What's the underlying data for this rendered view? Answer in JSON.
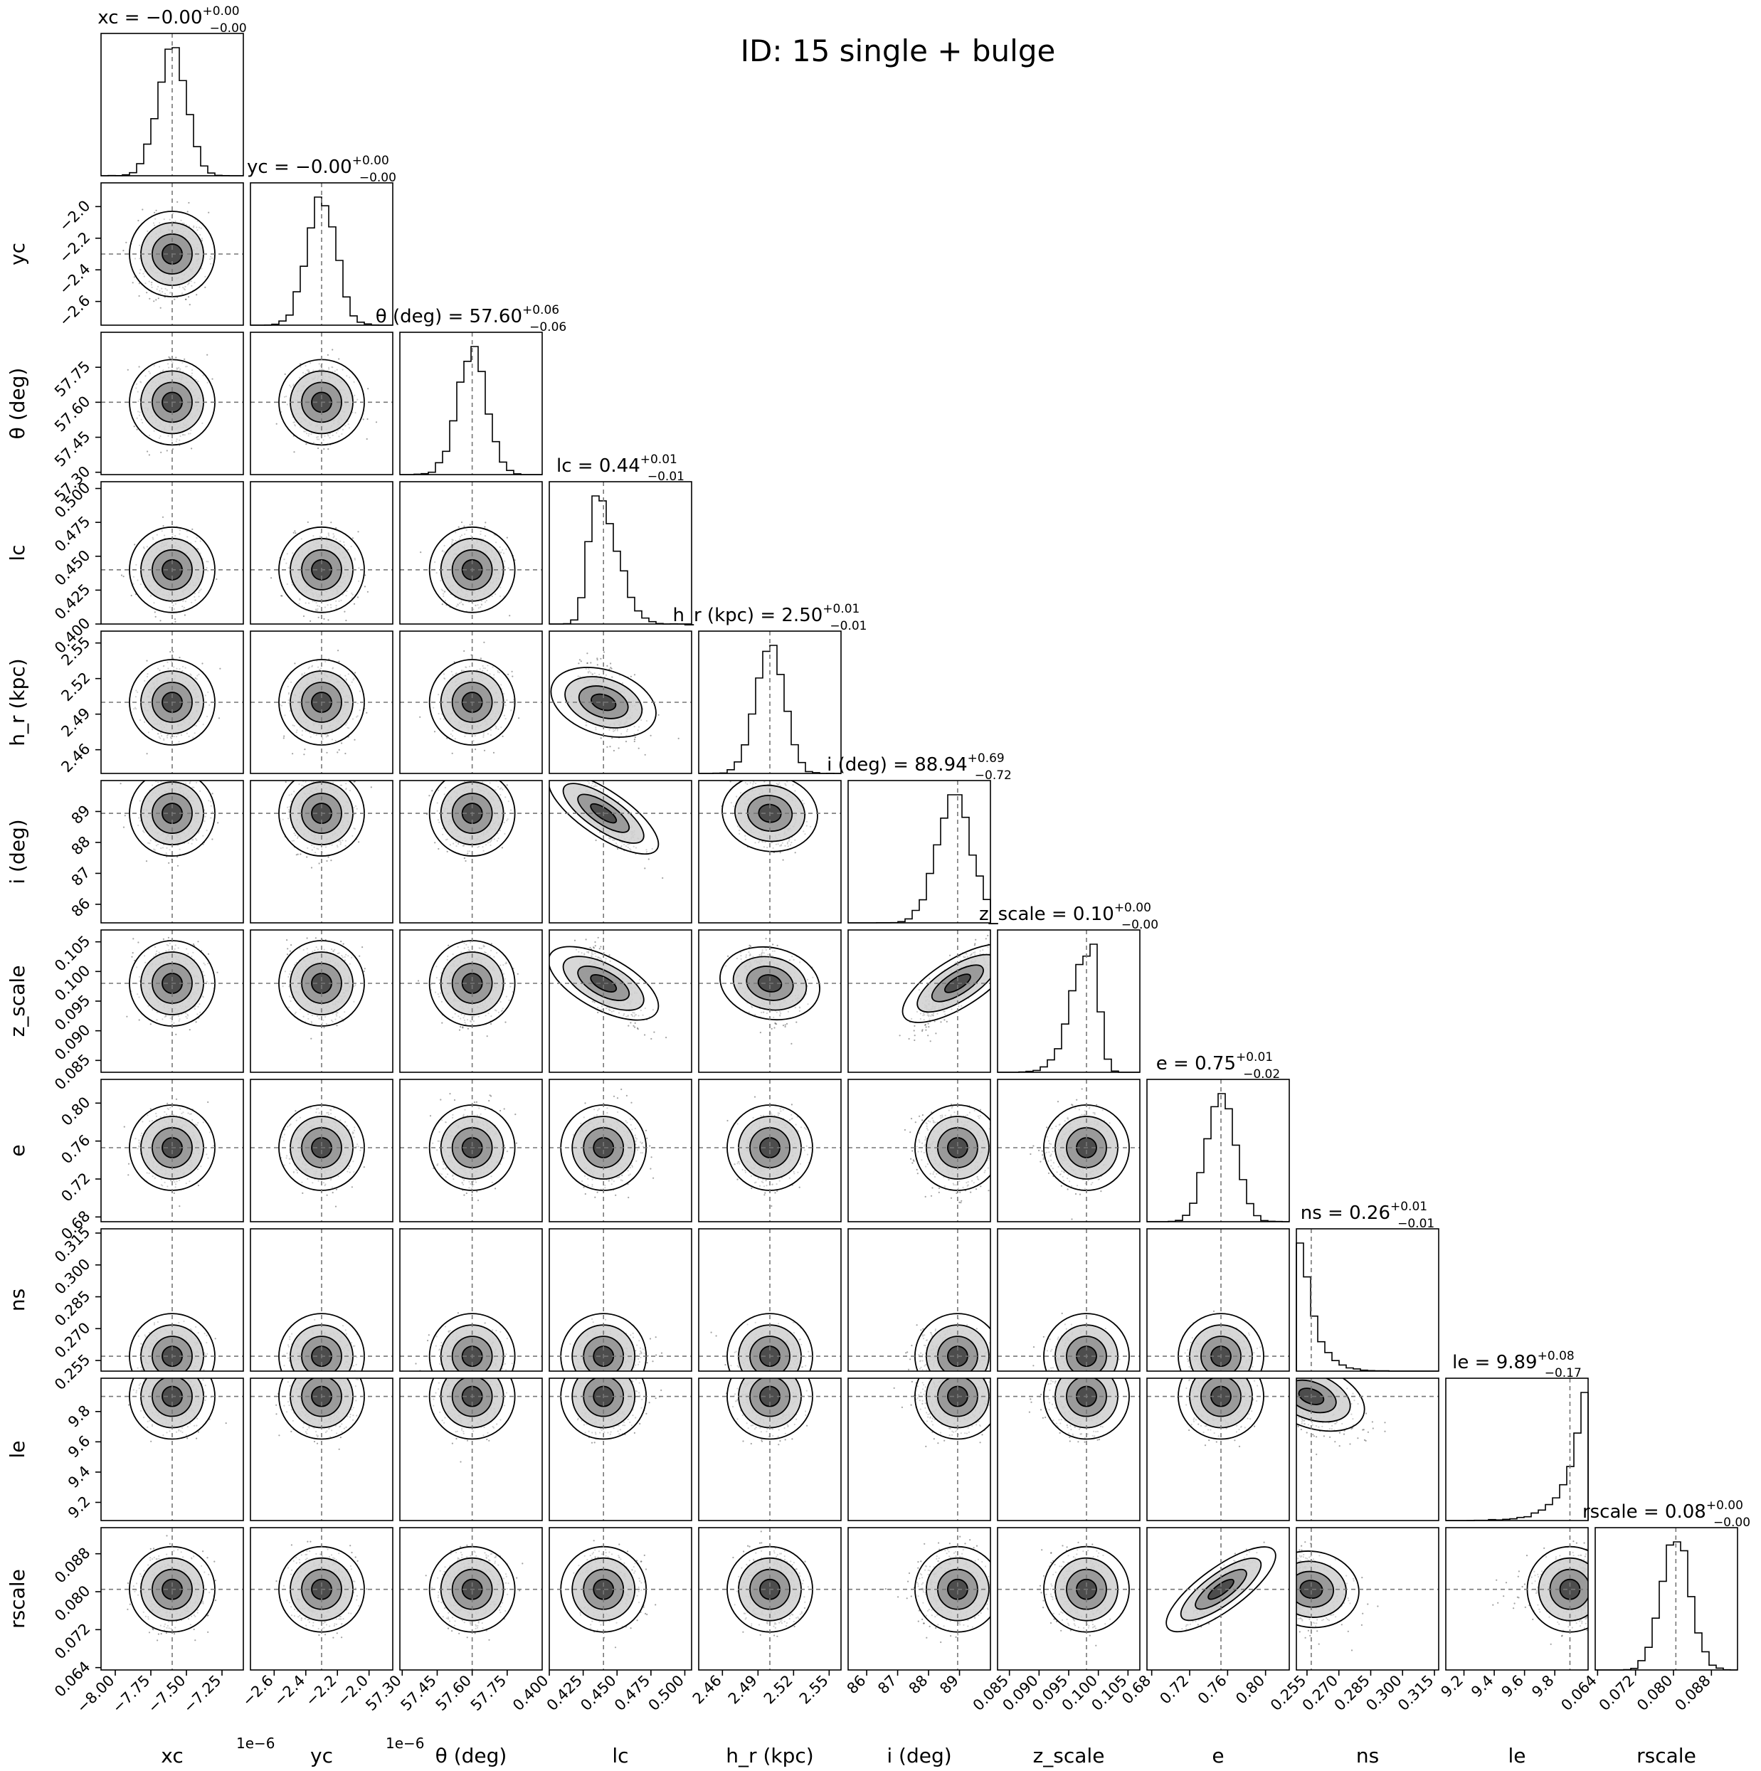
{
  "figure": {
    "title": "ID: 15  single + bulge"
  },
  "chart_data": {
    "type": "corner",
    "title": "ID: 15  single + bulge",
    "parameters": [
      {
        "key": "xc",
        "label": "xc",
        "median": -7.6e-06,
        "range": [
          -8.1e-06,
          -7.1e-06
        ],
        "scale": 1e-06,
        "offset_text": "1e−6",
        "ticks": [
          -8.0,
          -7.75,
          -7.5,
          -7.25
        ],
        "tick_labels": [
          "−8.00",
          "−7.75",
          "−7.50",
          "−7.25"
        ],
        "tick_min": -8.1,
        "tick_max": -7.1,
        "hist_shape": "normal",
        "title_value": "−0.00",
        "title_plus": "+0.00",
        "title_minus": "−0.00"
      },
      {
        "key": "yc",
        "label": "yc",
        "median": -2.3e-06,
        "range": [
          -2.75e-06,
          -1.85e-06
        ],
        "scale": 1e-06,
        "offset_text": "1e−6",
        "ticks": [
          -2.6,
          -2.4,
          -2.2,
          -2.0
        ],
        "tick_labels": [
          "−2.6",
          "−2.4",
          "−2.2",
          "−2.0"
        ],
        "tick_min": -2.75,
        "tick_max": -1.85,
        "hist_shape": "normal",
        "title_value": "−0.00",
        "title_plus": "+0.00",
        "title_minus": "−0.00"
      },
      {
        "key": "theta",
        "label": "θ (deg)",
        "median": 57.6,
        "range": [
          57.29,
          57.9
        ],
        "ticks": [
          57.3,
          57.45,
          57.6,
          57.75
        ],
        "tick_labels": [
          "57.30",
          "57.45",
          "57.60",
          "57.75"
        ],
        "tick_min": 57.29,
        "tick_max": 57.9,
        "hist_shape": "normal",
        "title_value": "57.60",
        "title_plus": "+0.06",
        "title_minus": "−0.06"
      },
      {
        "key": "lc",
        "label": "lc",
        "median": 0.44,
        "range": [
          0.4,
          0.505
        ],
        "ticks": [
          0.4,
          0.425,
          0.45,
          0.475,
          0.5
        ],
        "tick_labels": [
          "0.400",
          "0.425",
          "0.450",
          "0.475",
          "0.500"
        ],
        "tick_min": 0.4,
        "tick_max": 0.505,
        "hist_shape": "right_skew",
        "title_value": "0.44",
        "title_plus": "+0.01",
        "title_minus": "−0.01"
      },
      {
        "key": "hr",
        "label": "h_r (kpc)",
        "median": 2.5,
        "range": [
          2.44,
          2.56
        ],
        "ticks": [
          2.46,
          2.49,
          2.52,
          2.55
        ],
        "tick_labels": [
          "2.46",
          "2.49",
          "2.52",
          "2.55"
        ],
        "tick_min": 2.44,
        "tick_max": 2.56,
        "hist_shape": "normal",
        "title_value": "2.50",
        "title_plus": "+0.01",
        "title_minus": "−0.01"
      },
      {
        "key": "i",
        "label": "i (deg)",
        "median": 88.94,
        "range": [
          85.4,
          90.0
        ],
        "ticks": [
          86,
          87,
          88,
          89
        ],
        "tick_labels": [
          "86",
          "87",
          "88",
          "89"
        ],
        "tick_min": 85.4,
        "tick_max": 90.0,
        "hist_shape": "left_bound",
        "title_value": "88.94",
        "title_plus": "+0.69",
        "title_minus": "−0.72"
      },
      {
        "key": "z_scale",
        "label": "z_scale",
        "median": 0.098,
        "range": [
          0.083,
          0.107
        ],
        "ticks": [
          0.085,
          0.09,
          0.095,
          0.1,
          0.105
        ],
        "tick_labels": [
          "0.085",
          "0.090",
          "0.095",
          "0.100",
          "0.105"
        ],
        "tick_min": 0.083,
        "tick_max": 0.107,
        "hist_shape": "left_skew",
        "title_value": "0.10",
        "title_plus": "+0.00",
        "title_minus": "−0.00"
      },
      {
        "key": "e",
        "label": "e",
        "median": 0.753,
        "range": [
          0.675,
          0.825
        ],
        "ticks": [
          0.68,
          0.72,
          0.76,
          0.8
        ],
        "tick_labels": [
          "0.68",
          "0.72",
          "0.76",
          "0.80"
        ],
        "tick_min": 0.675,
        "tick_max": 0.825,
        "hist_shape": "normal",
        "title_value": "0.75",
        "title_plus": "+0.01",
        "title_minus": "−0.02"
      },
      {
        "key": "ns",
        "label": "ns",
        "median": 0.257,
        "range": [
          0.25,
          0.317
        ],
        "ticks": [
          0.255,
          0.27,
          0.285,
          0.3,
          0.315
        ],
        "tick_labels": [
          "0.255",
          "0.270",
          "0.285",
          "0.300",
          "0.315"
        ],
        "tick_min": 0.25,
        "tick_max": 0.317,
        "hist_shape": "exp_decay",
        "title_value": "0.26",
        "title_plus": "+0.01",
        "title_minus": "−0.01"
      },
      {
        "key": "le",
        "label": "le",
        "median": 9.9,
        "range": [
          9.08,
          10.02
        ],
        "ticks": [
          9.2,
          9.4,
          9.6,
          9.8
        ],
        "tick_labels": [
          "9.2",
          "9.4",
          "9.6",
          "9.8"
        ],
        "tick_min": 9.08,
        "tick_max": 10.02,
        "hist_shape": "right_bound",
        "title_value": "9.89",
        "title_plus": "+0.08",
        "title_minus": "−0.17"
      },
      {
        "key": "rscale",
        "label": "rscale",
        "median": 0.0805,
        "range": [
          0.0635,
          0.0935
        ],
        "ticks": [
          0.064,
          0.072,
          0.08,
          0.088
        ],
        "tick_labels": [
          "0.064",
          "0.072",
          "0.080",
          "0.088"
        ],
        "tick_min": 0.0635,
        "tick_max": 0.0935,
        "hist_shape": "normal",
        "title_value": "0.08",
        "title_plus": "+0.00",
        "title_minus": "−0.00"
      }
    ],
    "correlations": [
      {
        "pair": [
          "lc",
          "hr"
        ],
        "rho": -0.45
      },
      {
        "pair": [
          "lc",
          "i"
        ],
        "rho": -0.85
      },
      {
        "pair": [
          "lc",
          "z_scale"
        ],
        "rho": -0.7
      },
      {
        "pair": [
          "hr",
          "i"
        ],
        "rho": -0.2
      },
      {
        "pair": [
          "hr",
          "z_scale"
        ],
        "rho": -0.3
      },
      {
        "pair": [
          "i",
          "z_scale"
        ],
        "rho": 0.8
      },
      {
        "pair": [
          "e",
          "rscale"
        ],
        "rho": 0.9
      },
      {
        "pair": [
          "ns",
          "le"
        ],
        "rho": -0.5
      },
      {
        "pair": [
          "ns",
          "rscale"
        ],
        "rho": -0.2
      }
    ],
    "contour_levels": [
      "0.5σ",
      "1σ",
      "1.5σ",
      "2σ"
    ],
    "truth_lines": "dashed grey at parameter medians",
    "grid": false
  }
}
